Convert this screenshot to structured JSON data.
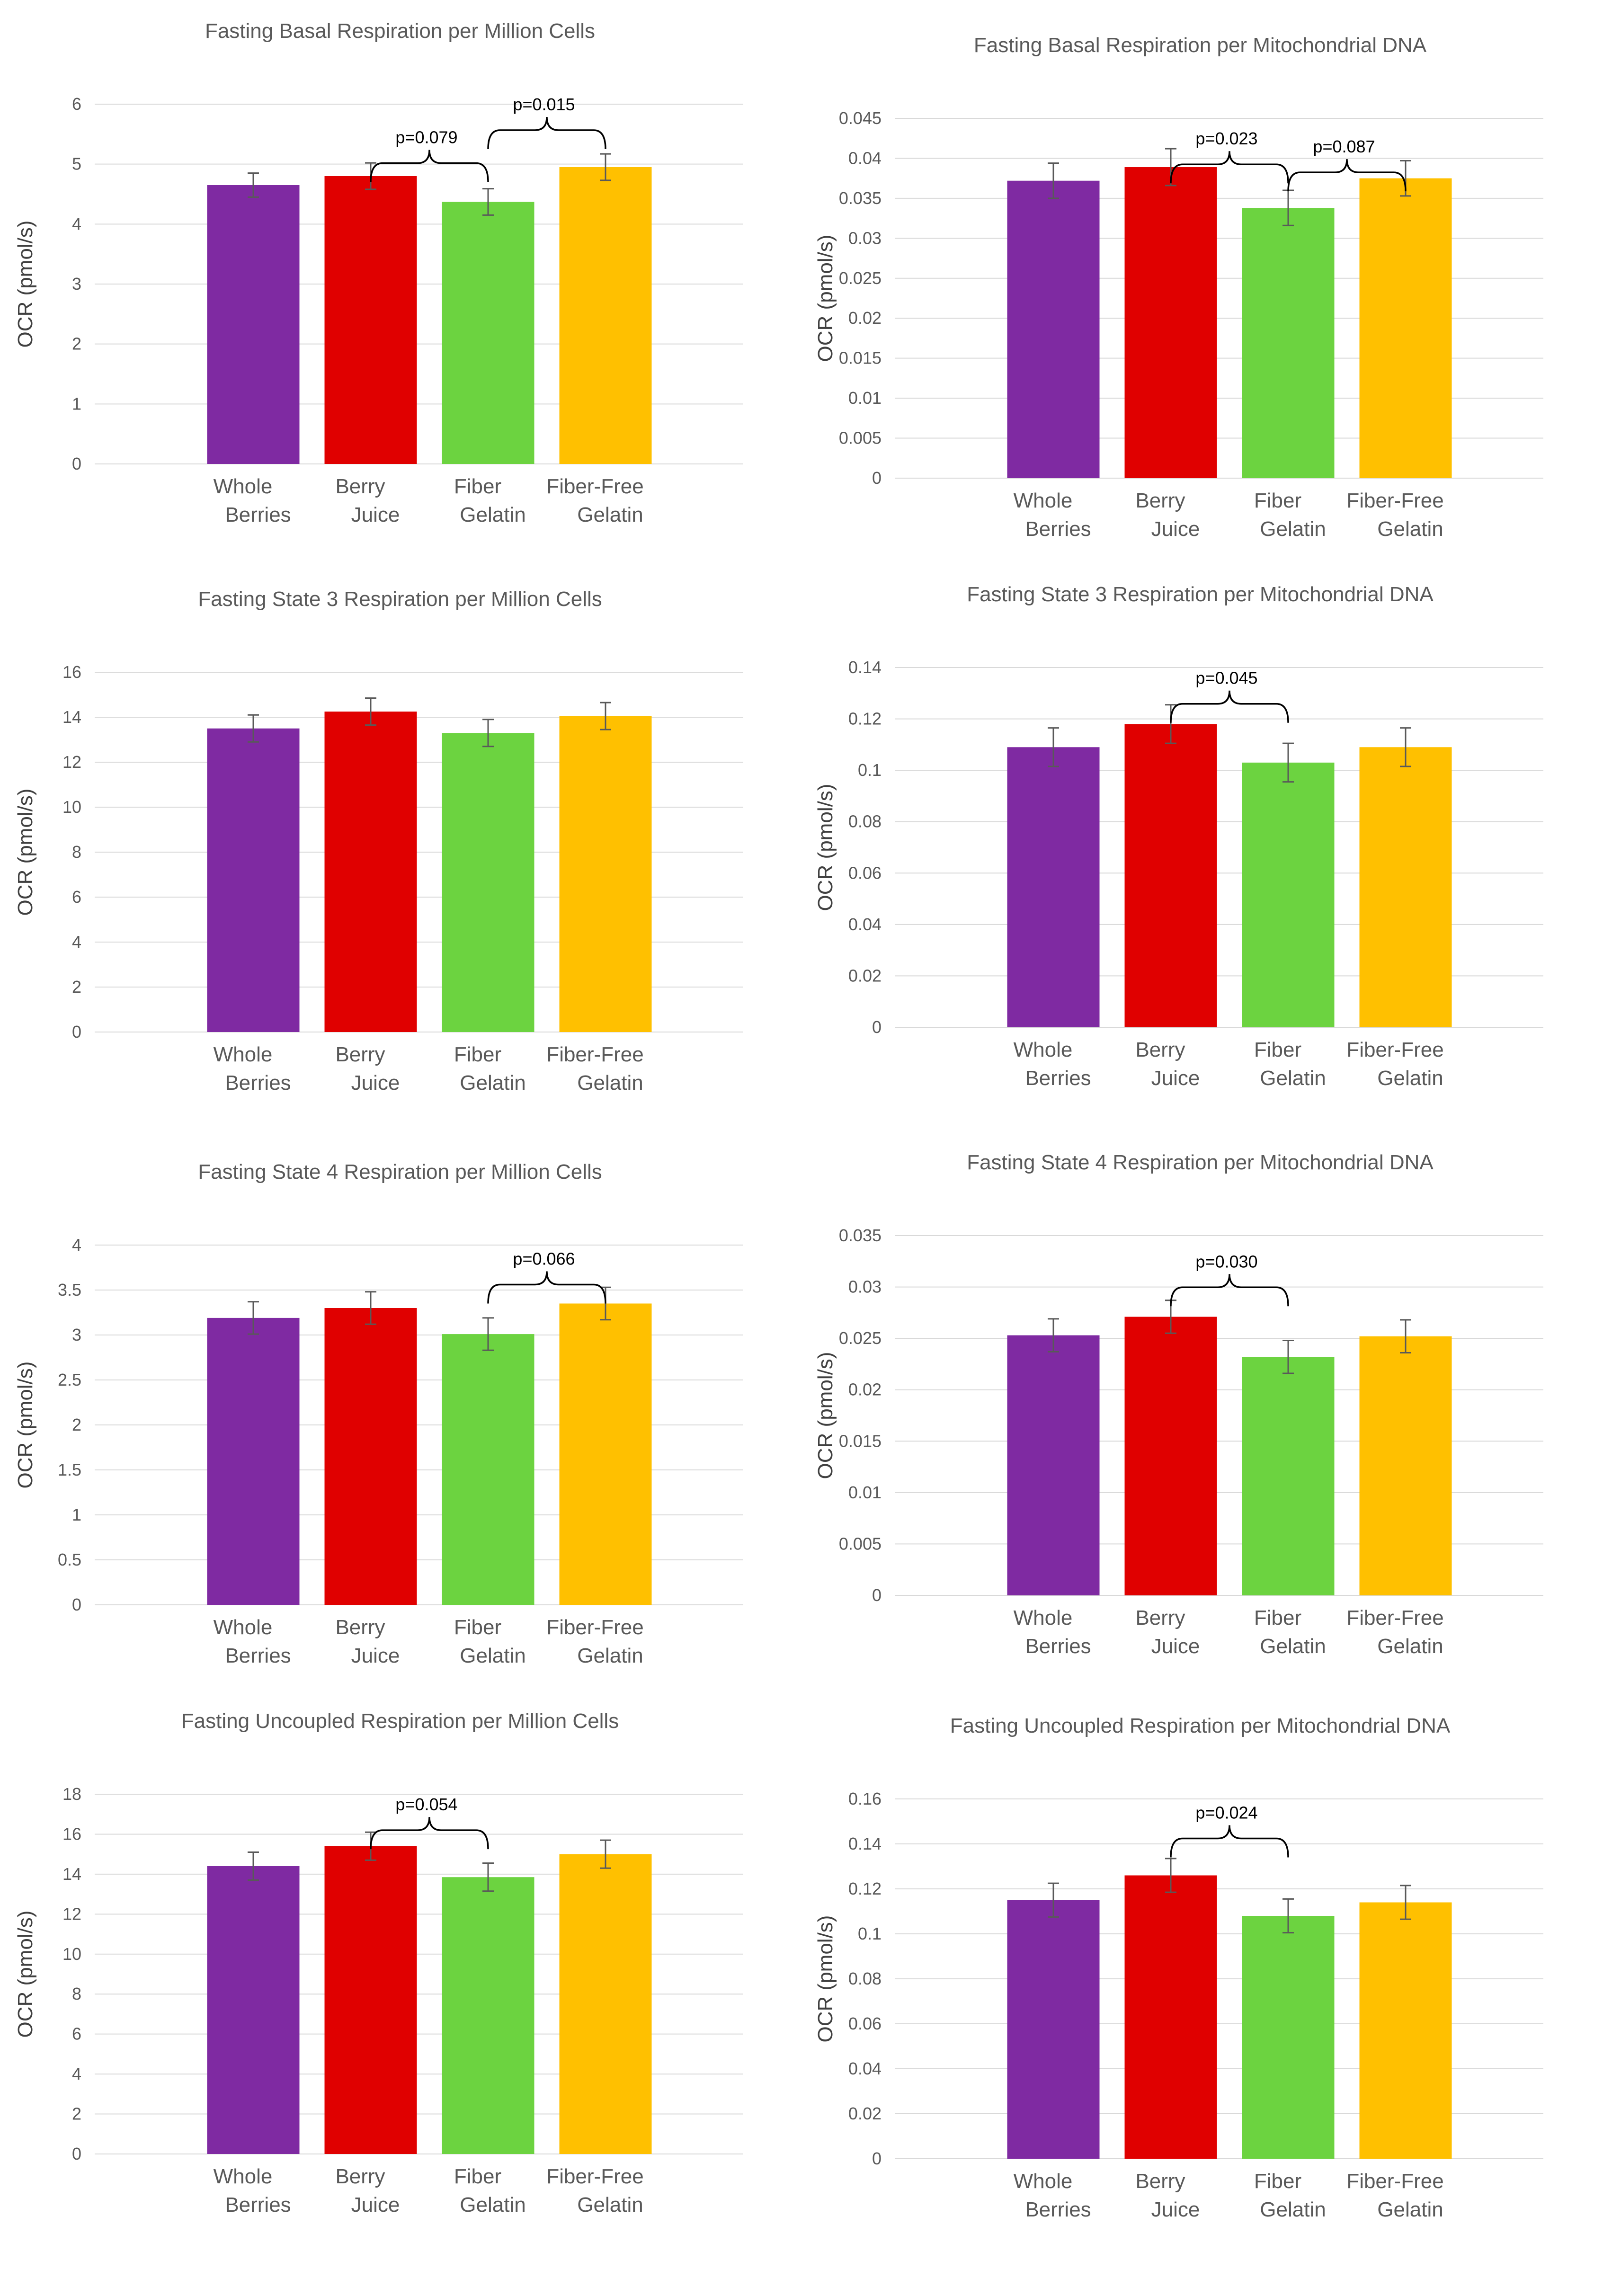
{
  "categories": [
    "Whole Berries",
    "Berry Juice",
    "Fiber Gelatin",
    "Fiber-Free Gelatin"
  ],
  "colors": {
    "Whole Berries": "#7f2aa2",
    "Berry Juice": "#e00000",
    "Fiber Gelatin": "#6cd340",
    "Fiber-Free Gelatin": "#ffc000",
    "grid": "#d9d9d9",
    "axis_text": "#595959",
    "error_bar": "#595959",
    "bracket": "#000000"
  },
  "chart_data": [
    {
      "type": "bar",
      "title": "Fasting Basal Respiration per Million Cells",
      "ylabel": "OCR (pmol/s)",
      "categories": [
        "Whole Berries",
        "Berry Juice",
        "Fiber Gelatin",
        "Fiber-Free Gelatin"
      ],
      "values": [
        4.65,
        4.8,
        4.37,
        4.95
      ],
      "errors": [
        0.2,
        0.22,
        0.22,
        0.22
      ],
      "ylim": [
        0,
        6
      ],
      "yticks": [
        "0",
        "1",
        "2",
        "3",
        "4",
        "5",
        "6"
      ],
      "grid": true,
      "annotations": [
        {
          "from": 1,
          "to": 2,
          "label": "p=0.079",
          "level": 5.45
        },
        {
          "from": 2,
          "to": 3,
          "label": "p=0.015",
          "level": 6.0
        }
      ]
    },
    {
      "type": "bar",
      "title": "Fasting Basal Respiration per Mitochondrial DNA",
      "ylabel": "OCR (pmol/s)",
      "categories": [
        "Whole Berries",
        "Berry Juice",
        "Fiber Gelatin",
        "Fiber-Free Gelatin"
      ],
      "values": [
        0.0372,
        0.0389,
        0.0338,
        0.0375
      ],
      "errors": [
        0.0022,
        0.0023,
        0.0022,
        0.0022
      ],
      "ylim": [
        0,
        0.045
      ],
      "yticks": [
        "0",
        "0.005",
        "0.01",
        "0.015",
        "0.02",
        "0.025",
        "0.03",
        "0.035",
        "0.04",
        "0.045"
      ],
      "grid": true,
      "annotations": [
        {
          "from": 1,
          "to": 2,
          "label": "p=0.023",
          "level": 0.0425
        },
        {
          "from": 2,
          "to": 3,
          "label": "p=0.087",
          "level": 0.0415
        }
      ]
    },
    {
      "type": "bar",
      "title": "Fasting State 3 Respiration per Million Cells",
      "ylabel": "OCR (pmol/s)",
      "categories": [
        "Whole Berries",
        "Berry Juice",
        "Fiber Gelatin",
        "Fiber-Free Gelatin"
      ],
      "values": [
        13.5,
        14.25,
        13.3,
        14.05
      ],
      "errors": [
        0.6,
        0.6,
        0.6,
        0.6
      ],
      "ylim": [
        0,
        16
      ],
      "yticks": [
        "0",
        "2",
        "4",
        "6",
        "8",
        "10",
        "12",
        "14",
        "16"
      ],
      "grid": true,
      "annotations": []
    },
    {
      "type": "bar",
      "title": "Fasting State 3 Respiration per Mitochondrial DNA",
      "ylabel": "OCR (pmol/s)",
      "categories": [
        "Whole Berries",
        "Berry Juice",
        "Fiber Gelatin",
        "Fiber-Free Gelatin"
      ],
      "values": [
        0.109,
        0.118,
        0.103,
        0.109
      ],
      "errors": [
        0.0075,
        0.0075,
        0.0075,
        0.0075
      ],
      "ylim": [
        0,
        0.14
      ],
      "yticks": [
        "0",
        "0.02",
        "0.04",
        "0.06",
        "0.08",
        "0.1",
        "0.12",
        "0.14"
      ],
      "grid": true,
      "annotations": [
        {
          "from": 1,
          "to": 2,
          "label": "p=0.045",
          "level": 0.136
        }
      ]
    },
    {
      "type": "bar",
      "title": "Fasting State 4 Respiration per Million Cells",
      "ylabel": "OCR (pmol/s)",
      "categories": [
        "Whole Berries",
        "Berry Juice",
        "Fiber Gelatin",
        "Fiber-Free Gelatin"
      ],
      "values": [
        3.19,
        3.3,
        3.01,
        3.35
      ],
      "errors": [
        0.18,
        0.18,
        0.18,
        0.18
      ],
      "ylim": [
        0,
        4
      ],
      "yticks": [
        "0",
        "0.5",
        "1",
        "1.5",
        "2",
        "2.5",
        "3",
        "3.5",
        "4"
      ],
      "grid": true,
      "annotations": [
        {
          "from": 2,
          "to": 3,
          "label": "p=0.066",
          "level": 3.85
        }
      ]
    },
    {
      "type": "bar",
      "title": "Fasting State 4 Respiration per Mitochondrial DNA",
      "ylabel": "OCR (pmol/s)",
      "categories": [
        "Whole Berries",
        "Berry Juice",
        "Fiber Gelatin",
        "Fiber-Free Gelatin"
      ],
      "values": [
        0.0253,
        0.0271,
        0.0232,
        0.0252
      ],
      "errors": [
        0.0016,
        0.0016,
        0.0016,
        0.0016
      ],
      "ylim": [
        0,
        0.035
      ],
      "yticks": [
        "0",
        "0.005",
        "0.01",
        "0.015",
        "0.02",
        "0.025",
        "0.03",
        "0.035"
      ],
      "grid": true,
      "annotations": [
        {
          "from": 1,
          "to": 2,
          "label": "p=0.030",
          "level": 0.0325
        }
      ]
    },
    {
      "type": "bar",
      "title": "Fasting Uncoupled Respiration per Million Cells",
      "ylabel": "OCR (pmol/s)",
      "categories": [
        "Whole Berries",
        "Berry Juice",
        "Fiber Gelatin",
        "Fiber-Free Gelatin"
      ],
      "values": [
        14.4,
        15.4,
        13.85,
        15.0
      ],
      "errors": [
        0.7,
        0.7,
        0.7,
        0.7
      ],
      "ylim": [
        0,
        18
      ],
      "yticks": [
        "0",
        "2",
        "4",
        "6",
        "8",
        "10",
        "12",
        "14",
        "16",
        "18"
      ],
      "grid": true,
      "annotations": [
        {
          "from": 1,
          "to": 2,
          "label": "p=0.054",
          "level": 17.5
        }
      ]
    },
    {
      "type": "bar",
      "title": "Fasting Uncoupled Respiration per Mitochondrial DNA",
      "ylabel": "OCR (pmol/s)",
      "categories": [
        "Whole Berries",
        "Berry Juice",
        "Fiber Gelatin",
        "Fiber-Free Gelatin"
      ],
      "values": [
        0.115,
        0.126,
        0.108,
        0.114
      ],
      "errors": [
        0.0075,
        0.0075,
        0.0075,
        0.0075
      ],
      "ylim": [
        0,
        0.16
      ],
      "yticks": [
        "0",
        "0.02",
        "0.04",
        "0.06",
        "0.08",
        "0.1",
        "0.12",
        "0.14",
        "0.16"
      ],
      "grid": true,
      "annotations": [
        {
          "from": 1,
          "to": 2,
          "label": "p=0.024",
          "level": 0.154
        }
      ]
    }
  ]
}
